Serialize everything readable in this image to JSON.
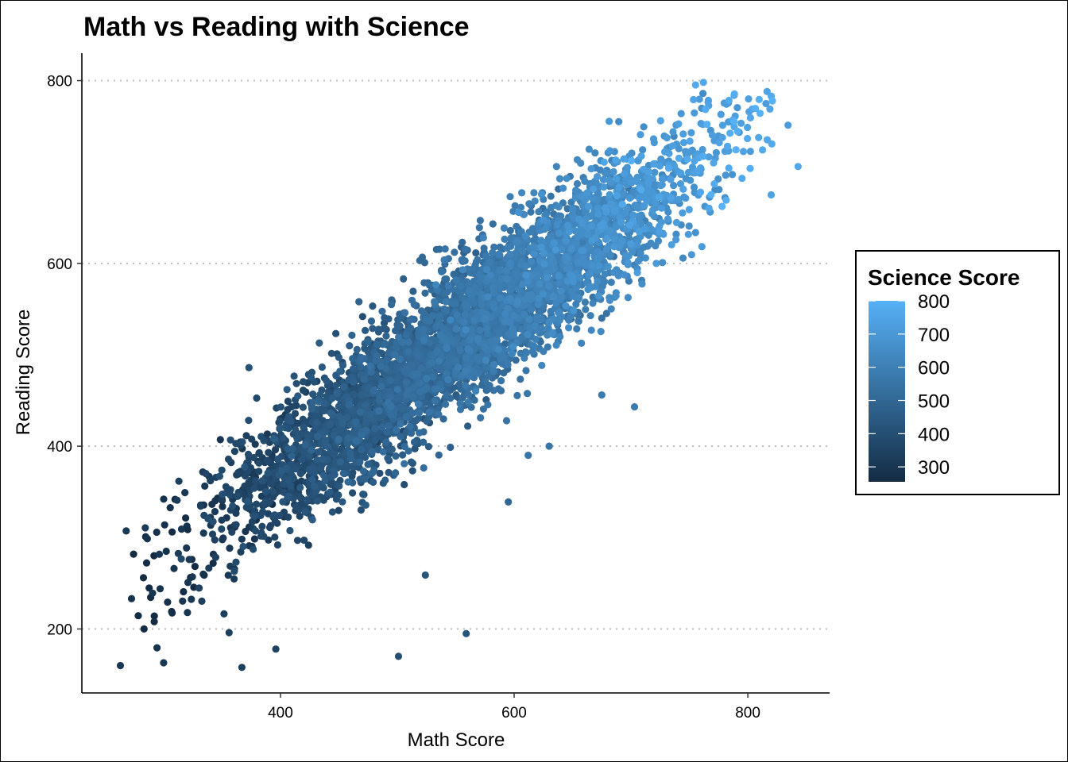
{
  "chart_data": {
    "type": "scatter",
    "title": "Math vs Reading with Science",
    "xlabel": "Math Score",
    "ylabel": "Reading Score",
    "xlim": [
      230,
      870
    ],
    "ylim": [
      130,
      830
    ],
    "x_ticks": [
      400,
      600,
      800
    ],
    "y_ticks": [
      200,
      400,
      600,
      800
    ],
    "grid": "horizontal-major-dotted",
    "color_scale": {
      "title": "Science Score",
      "low_color": "#132B43",
      "high_color": "#56B1F7",
      "range": [
        255,
        800
      ],
      "ticks": [
        300,
        400,
        500,
        600,
        700,
        800
      ],
      "legend_position": "right"
    },
    "points_summary": {
      "approx_count": 5000,
      "trend": "strong positive linear",
      "math_range": [
        262,
        845
      ],
      "reading_range": [
        158,
        798
      ]
    },
    "outliers": [
      {
        "x": 263,
        "y": 160,
        "science": 300
      },
      {
        "x": 300,
        "y": 163,
        "science": 310
      },
      {
        "x": 367,
        "y": 158,
        "science": 340
      },
      {
        "x": 396,
        "y": 178,
        "science": 350
      },
      {
        "x": 501,
        "y": 170,
        "science": 400
      },
      {
        "x": 559,
        "y": 195,
        "science": 420
      },
      {
        "x": 524,
        "y": 259,
        "science": 430
      },
      {
        "x": 356,
        "y": 196,
        "science": 340
      },
      {
        "x": 762,
        "y": 798,
        "science": 760
      },
      {
        "x": 843,
        "y": 706,
        "science": 760
      },
      {
        "x": 820,
        "y": 783,
        "science": 770
      },
      {
        "x": 612,
        "y": 390,
        "science": 560
      },
      {
        "x": 630,
        "y": 400,
        "science": 560
      },
      {
        "x": 703,
        "y": 443,
        "science": 580
      },
      {
        "x": 675,
        "y": 456,
        "science": 580
      },
      {
        "x": 373,
        "y": 486,
        "science": 410
      },
      {
        "x": 595,
        "y": 339,
        "science": 500
      },
      {
        "x": 820,
        "y": 675,
        "science": 740
      }
    ]
  }
}
